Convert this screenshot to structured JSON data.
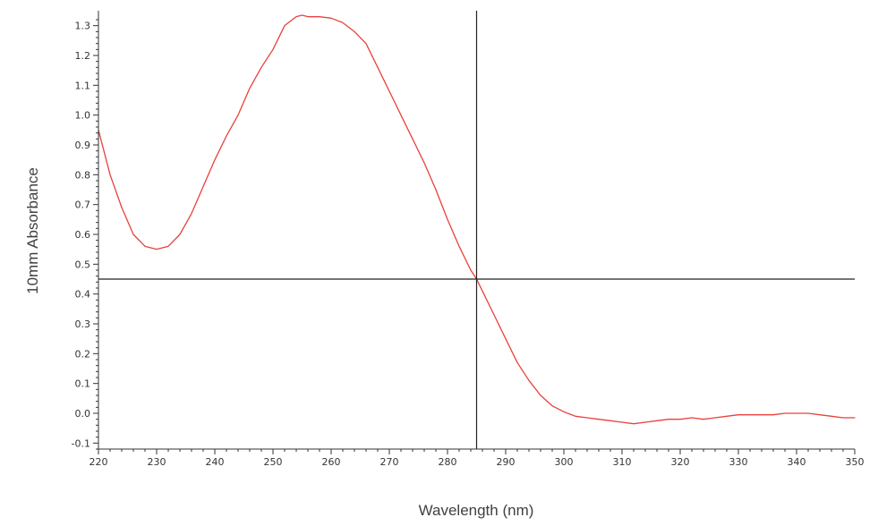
{
  "chart_data": {
    "type": "line",
    "title": "",
    "xlabel": "Wavelength (nm)",
    "ylabel": "10mm Absorbance",
    "xlim": [
      220,
      350
    ],
    "ylim": [
      -0.12,
      1.35
    ],
    "x_ticks": [
      220,
      230,
      240,
      250,
      260,
      270,
      280,
      290,
      300,
      310,
      320,
      330,
      340,
      350
    ],
    "x_tick_labels": [
      "220",
      "230",
      "240",
      "250",
      "260",
      "270",
      "280",
      "290",
      "300",
      "310",
      "320",
      "330",
      "340",
      "350"
    ],
    "y_ticks": [
      -0.1,
      0.0,
      0.1,
      0.2,
      0.3,
      0.4,
      0.5,
      0.6,
      0.7,
      0.8,
      0.9,
      1.0,
      1.1,
      1.2,
      1.3
    ],
    "y_tick_labels": [
      "-0.1",
      "0.0",
      "0.1",
      "0.2",
      "0.3",
      "0.4",
      "0.5",
      "0.6",
      "0.7",
      "0.8",
      "0.9",
      "1.0",
      "1.1",
      "1.2",
      "1.3"
    ],
    "grid": false,
    "legend": false,
    "series": [
      {
        "color": "#e8413c",
        "x": [
          220,
          222,
          224,
          226,
          228,
          230,
          232,
          234,
          236,
          238,
          240,
          242,
          244,
          246,
          248,
          250,
          252,
          254,
          255,
          256,
          258,
          260,
          262,
          264,
          266,
          268,
          270,
          272,
          274,
          276,
          278,
          280,
          282,
          284,
          285,
          286,
          288,
          290,
          292,
          294,
          296,
          298,
          300,
          302,
          304,
          306,
          308,
          310,
          312,
          314,
          316,
          318,
          320,
          322,
          324,
          326,
          328,
          330,
          332,
          334,
          336,
          338,
          340,
          342,
          344,
          346,
          348,
          350
        ],
        "y": [
          0.95,
          0.8,
          0.69,
          0.6,
          0.56,
          0.55,
          0.56,
          0.6,
          0.67,
          0.76,
          0.85,
          0.93,
          1.0,
          1.09,
          1.16,
          1.22,
          1.3,
          1.33,
          1.335,
          1.33,
          1.33,
          1.325,
          1.31,
          1.28,
          1.24,
          1.16,
          1.08,
          1.0,
          0.92,
          0.84,
          0.75,
          0.65,
          0.56,
          0.48,
          0.45,
          0.41,
          0.33,
          0.25,
          0.17,
          0.11,
          0.06,
          0.025,
          0.005,
          -0.01,
          -0.015,
          -0.02,
          -0.025,
          -0.03,
          -0.035,
          -0.03,
          -0.025,
          -0.02,
          -0.02,
          -0.015,
          -0.02,
          -0.015,
          -0.01,
          -0.005,
          -0.005,
          -0.005,
          -0.005,
          0.0,
          0.0,
          0.0,
          -0.005,
          -0.01,
          -0.015,
          -0.015
        ]
      }
    ],
    "crosshair": {
      "x": 285,
      "y": 0.45,
      "color": "#222222"
    },
    "axis_color": "#333333"
  }
}
